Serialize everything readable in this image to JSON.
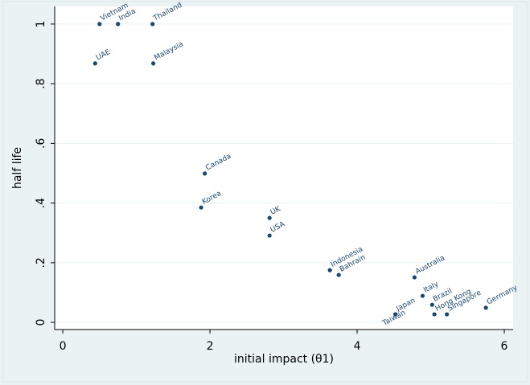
{
  "chart_data": {
    "type": "scatter",
    "x_label": "initial impact (θ1)",
    "y_label": "half life",
    "color": "#1a476f",
    "labels": [
      "Vietnam",
      "India",
      "Thailand",
      "UAE",
      "Malaysia",
      "Canada",
      "Korea",
      "UK",
      "USA",
      "Indonesia",
      "Bahrain",
      "Australia",
      "Italy",
      "Brazil",
      "Hong Kong",
      "Singapore",
      "Germany",
      "Japan",
      "Taiwan"
    ],
    "x": [
      0.5,
      0.75,
      1.22,
      0.44,
      1.23,
      1.93,
      1.88,
      2.81,
      2.81,
      3.63,
      3.75,
      4.78,
      4.89,
      5.02,
      5.05,
      5.22,
      5.75,
      4.52,
      4.52
    ],
    "y": [
      1,
      1,
      1,
      0.868,
      0.868,
      0.499,
      0.385,
      0.35,
      0.291,
      0.175,
      0.159,
      0.151,
      0.089,
      0.059,
      0.027,
      0.027,
      0.049,
      0.027,
      0.027
    ],
    "xlim": [
      -0.11,
      6.12
    ],
    "ylim": [
      -0.024,
      1.059
    ],
    "xticks": [
      0,
      2,
      4,
      6
    ],
    "yticks": [
      0,
      {
        "value": 0.2,
        "label": ".2"
      },
      {
        "value": 0.4,
        "label": ".4"
      },
      {
        "value": 0.6,
        "label": ".6"
      },
      {
        "value": 0.8,
        "label": ".8"
      },
      1
    ],
    "grid": true
  }
}
